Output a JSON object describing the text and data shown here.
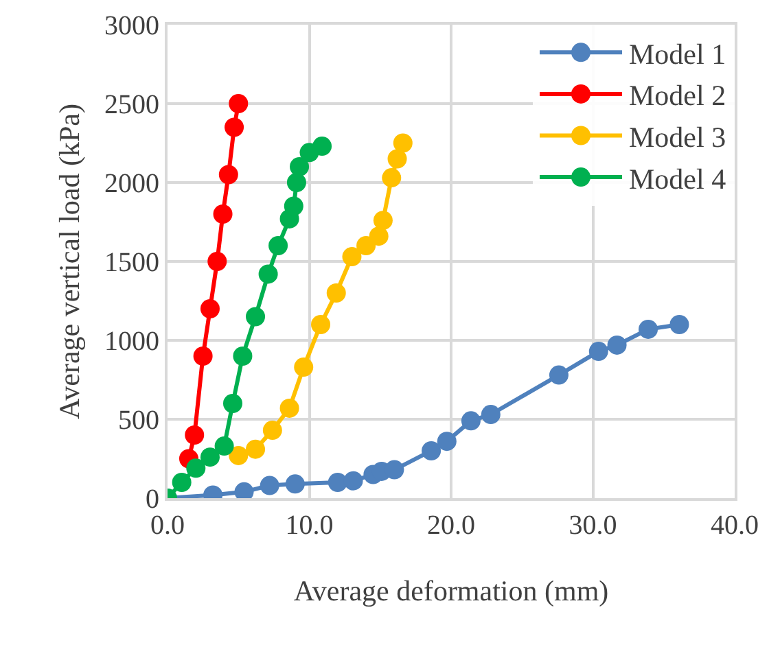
{
  "chart_data": {
    "type": "line",
    "xlabel": "Average deformation (mm)",
    "ylabel": "Average vertical load (kPa)",
    "xlim": [
      0,
      40
    ],
    "xticks": [
      {
        "value": 0,
        "label": "0.0"
      },
      {
        "value": 10,
        "label": "10.0"
      },
      {
        "value": 20,
        "label": "20.0"
      },
      {
        "value": 30,
        "label": "30.0"
      },
      {
        "value": 40,
        "label": "40.0"
      }
    ],
    "ylim": [
      0,
      3000
    ],
    "yticks": [
      0,
      500,
      1000,
      1500,
      2000,
      2500,
      3000
    ],
    "grid": true,
    "legend": "top right",
    "marker": "circle",
    "line_style": "solid",
    "series": [
      {
        "name": "Model 1",
        "color": "#4f81bd",
        "x": [
          0,
          3.2,
          5.4,
          7.2,
          9.0,
          12.0,
          13.1,
          14.5,
          15.1,
          16.0,
          18.6,
          19.7,
          21.4,
          22.8,
          27.6,
          30.4,
          31.7,
          33.9,
          36.1
        ],
        "values": [
          0,
          20,
          40,
          80,
          90,
          100,
          110,
          150,
          170,
          180,
          300,
          360,
          490,
          530,
          780,
          930,
          970,
          1070,
          1100
        ]
      },
      {
        "name": "Model 2",
        "color": "#ff0000",
        "x": [
          1.5,
          1.9,
          2.5,
          3.0,
          3.5,
          3.9,
          4.3,
          4.7,
          5.0
        ],
        "values": [
          250,
          400,
          900,
          1200,
          1500,
          1800,
          2050,
          2350,
          2500
        ]
      },
      {
        "name": "Model 3",
        "color": "#ffc000",
        "x": [
          5,
          6.2,
          7.4,
          8.6,
          9.6,
          10.8,
          11.9,
          13.0,
          14.0,
          14.9,
          15.2,
          15.8,
          16.2,
          16.6
        ],
        "values": [
          270,
          310,
          430,
          570,
          830,
          1100,
          1300,
          1530,
          1600,
          1660,
          1760,
          2030,
          2150,
          2250
        ]
      },
      {
        "name": "Model 4",
        "color": "#00b050",
        "x": [
          0,
          1,
          2,
          3,
          4,
          4.6,
          5.3,
          6.2,
          7.1,
          7.8,
          8.6,
          8.9,
          9.1,
          9.3,
          10.0,
          10.9
        ],
        "values": [
          0,
          100,
          190,
          260,
          330,
          600,
          900,
          1150,
          1420,
          1600,
          1770,
          1850,
          2000,
          2100,
          2190,
          2230
        ]
      }
    ]
  }
}
